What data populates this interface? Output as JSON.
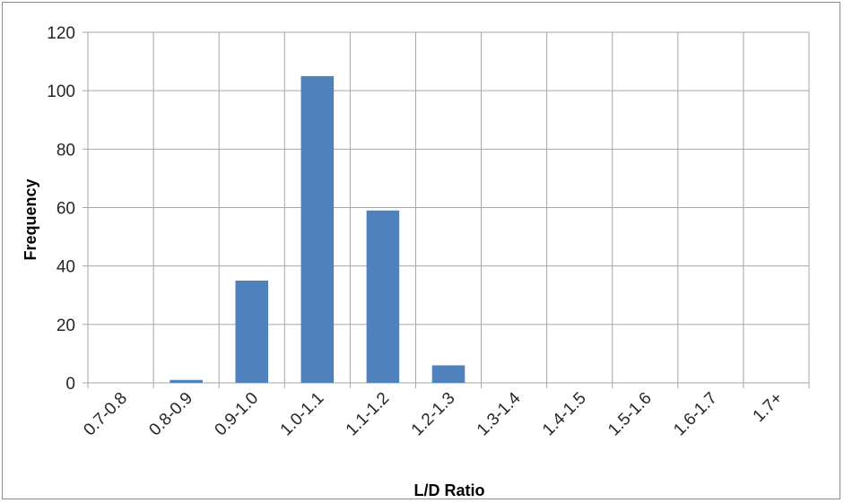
{
  "chart_data": {
    "type": "bar",
    "title": "",
    "xlabel": "L/D Ratio",
    "ylabel": "Frequency",
    "categories": [
      "0.7-0.8",
      "0.8-0.9",
      "0.9-1.0",
      "1.0-1.1",
      "1.1-1.2",
      "1.2-1.3",
      "1.3-1.4",
      "1.4-1.5",
      "1.5-1.6",
      "1.6-1.7",
      "1.7+"
    ],
    "values": [
      0,
      1,
      35,
      105,
      59,
      6,
      0,
      0,
      0,
      0,
      0
    ],
    "ylim": [
      0,
      120
    ],
    "yticks": [
      0,
      20,
      40,
      60,
      80,
      100,
      120
    ],
    "grid": true,
    "legend": "none",
    "bar_color": "#4f81bd",
    "grid_color": "#a6a6a6"
  }
}
